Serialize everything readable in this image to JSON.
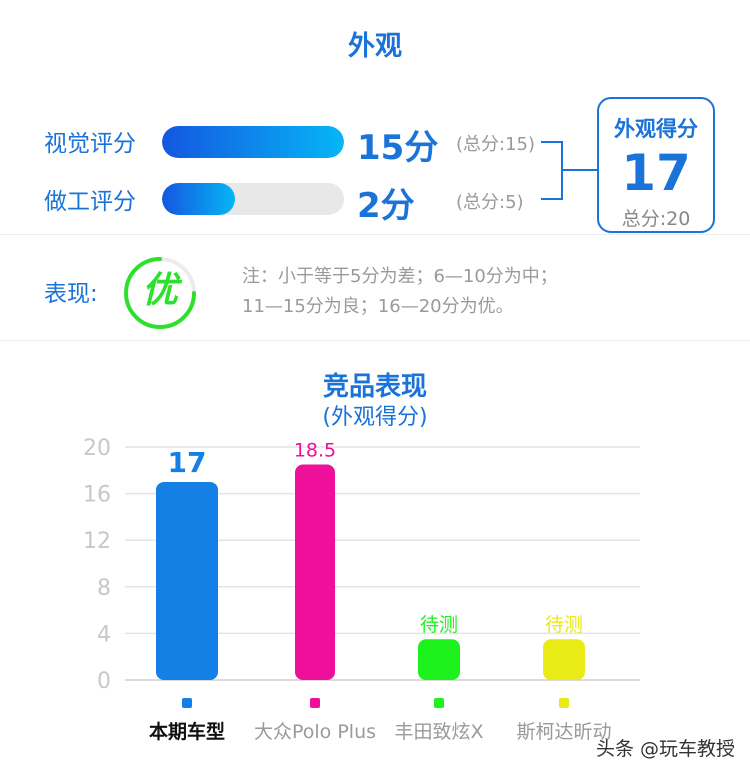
{
  "header": {
    "title": "外观"
  },
  "scores": [
    {
      "label": "视觉评分",
      "value_text": "15分",
      "total_text": "(总分:15)",
      "fill_fraction": 1.0
    },
    {
      "label": "做工评分",
      "value_text": "2分",
      "total_text": "(总分:5)",
      "fill_fraction": 0.4
    }
  ],
  "summary": {
    "title": "外观得分",
    "score": "17",
    "total": "总分:20"
  },
  "performance": {
    "label": "表现:",
    "grade": "优",
    "grade_color": "#2ee02e",
    "note_line1": "注：小于等于5分为差；6—10分为中；",
    "note_line2": "11—15分为良；16—20分为优。"
  },
  "chart_data": {
    "type": "bar",
    "title": "竞品表现",
    "subtitle": "(外观得分)",
    "categories": [
      "本期车型",
      "大众Polo Plus",
      "丰田致炫X",
      "斯柯达昕动"
    ],
    "values": [
      17,
      18.5,
      3.5,
      3.5
    ],
    "value_labels": [
      "17",
      "18.5",
      "待测",
      "待测"
    ],
    "colors": [
      "#1480e6",
      "#ee0f9b",
      "#1df21d",
      "#eaea16"
    ],
    "ylim": [
      0,
      20
    ],
    "yticks": [
      0,
      4,
      8,
      12,
      16,
      20
    ],
    "grid": true
  },
  "watermark": "头条 @玩车教授"
}
